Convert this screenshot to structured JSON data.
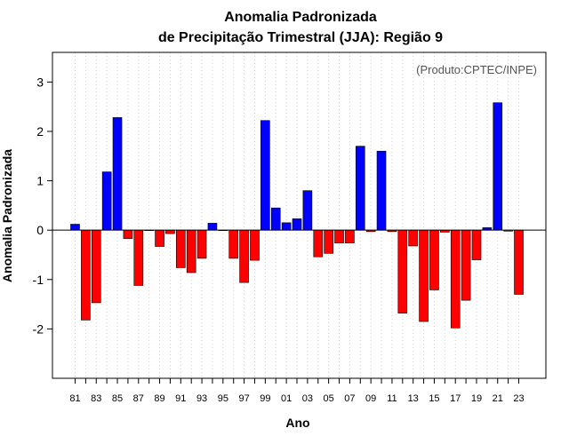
{
  "chart_data": {
    "type": "bar",
    "title_line1": "Anomalia Padronizada",
    "title_line2": "de Precipitação Trimestral (JJA): Região 9",
    "xlabel": "Ano",
    "ylabel": "Anomalia Padronizada",
    "credit": "(Produto:CPTEC/INPE)",
    "ylim": [
      -3,
      3.6
    ],
    "yticks": [
      -2,
      -1,
      0,
      1,
      2,
      3
    ],
    "years": [
      1981,
      1982,
      1983,
      1984,
      1985,
      1986,
      1987,
      1988,
      1989,
      1990,
      1991,
      1992,
      1993,
      1994,
      1995,
      1996,
      1997,
      1998,
      1999,
      2000,
      2001,
      2002,
      2003,
      2004,
      2005,
      2006,
      2007,
      2008,
      2009,
      2010,
      2011,
      2012,
      2013,
      2014,
      2015,
      2016,
      2017,
      2018,
      2019,
      2020,
      2021,
      2022,
      2023
    ],
    "values": [
      0.12,
      -1.82,
      -1.47,
      1.18,
      2.28,
      -0.17,
      -1.12,
      0.0,
      -0.33,
      -0.07,
      -0.76,
      -0.86,
      -0.57,
      0.14,
      0.0,
      -0.57,
      -1.06,
      -0.61,
      2.22,
      0.45,
      0.15,
      0.23,
      0.8,
      -0.54,
      -0.47,
      -0.26,
      -0.26,
      1.7,
      -0.03,
      1.6,
      -0.03,
      -1.68,
      -0.32,
      -1.85,
      -1.21,
      -0.04,
      -1.98,
      -1.42,
      -0.6,
      0.05,
      2.58,
      -0.02,
      -1.3
    ],
    "xtick_labels": [
      "81",
      "83",
      "85",
      "87",
      "89",
      "91",
      "93",
      "95",
      "97",
      "99",
      "01",
      "03",
      "05",
      "07",
      "09",
      "11",
      "13",
      "15",
      "17",
      "19",
      "21",
      "23"
    ],
    "colors": {
      "positive": "#0000ff",
      "negative": "#ff0000",
      "outline": "#000000",
      "grid": "#d0d0d0"
    }
  }
}
